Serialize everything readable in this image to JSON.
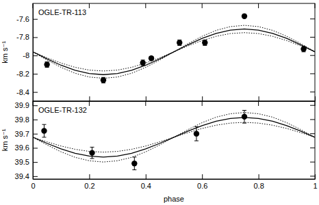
{
  "chart_data": [
    {
      "type": "scatter",
      "annotation": "OGLE-TR-113",
      "ylabel": "km s⁻¹",
      "xlim": [
        0,
        1
      ],
      "xticks": [
        0,
        0.2,
        0.4,
        0.6,
        0.8,
        1
      ],
      "ylim": [
        -8.5,
        -7.43
      ],
      "yticks": [
        -8.4,
        -8.2,
        -8,
        -7.8,
        -7.6
      ],
      "tick_labels": "y",
      "series": [
        {
          "type": "scatter",
          "marker": "circle",
          "color": "#000000",
          "x": [
            0.05,
            0.25,
            0.39,
            0.42,
            0.52,
            0.61,
            0.75,
            0.96
          ],
          "values": [
            -8.1,
            -8.27,
            -8.08,
            -8.03,
            -7.86,
            -7.86,
            -7.57,
            -7.93
          ],
          "errors": [
            0.03,
            0.03,
            0.03,
            0.02,
            0.03,
            0.03,
            0.02,
            0.03
          ]
        },
        {
          "type": "line",
          "line_style": "solid",
          "color": "#000000",
          "x": [
            0,
            0.05,
            0.1,
            0.15,
            0.2,
            0.25,
            0.3,
            0.35,
            0.4,
            0.45,
            0.5,
            0.55,
            0.6,
            0.65,
            0.7,
            0.75,
            0.8,
            0.85,
            0.9,
            0.95,
            1
          ],
          "values": [
            -7.96,
            -8.037,
            -8.107,
            -8.162,
            -8.198,
            -8.21,
            -8.198,
            -8.162,
            -8.107,
            -8.037,
            -7.96,
            -7.883,
            -7.813,
            -7.758,
            -7.722,
            -7.71,
            -7.722,
            -7.758,
            -7.813,
            -7.883,
            -7.96
          ]
        },
        {
          "type": "line",
          "line_style": "dotted",
          "color": "#000000",
          "x": [
            0,
            0.05,
            0.1,
            0.15,
            0.2,
            0.25,
            0.3,
            0.35,
            0.4,
            0.45,
            0.5,
            0.55,
            0.6,
            0.65,
            0.7,
            0.75,
            0.8,
            0.85,
            0.9,
            0.95,
            1
          ],
          "values": [
            -7.96,
            -8.05,
            -8.13,
            -8.195,
            -8.236,
            -8.25,
            -8.236,
            -8.195,
            -8.13,
            -8.05,
            -7.96,
            -7.87,
            -7.79,
            -7.725,
            -7.684,
            -7.67,
            -7.684,
            -7.725,
            -7.79,
            -7.87,
            -7.96
          ]
        },
        {
          "type": "line",
          "line_style": "dotted",
          "color": "#000000",
          "x": [
            0,
            0.05,
            0.1,
            0.15,
            0.2,
            0.25,
            0.3,
            0.35,
            0.4,
            0.45,
            0.5,
            0.55,
            0.6,
            0.65,
            0.7,
            0.75,
            0.8,
            0.85,
            0.9,
            0.95,
            1
          ],
          "values": [
            -7.96,
            -8.025,
            -8.083,
            -8.13,
            -8.16,
            -8.17,
            -8.16,
            -8.13,
            -8.083,
            -8.025,
            -7.96,
            -7.895,
            -7.837,
            -7.79,
            -7.76,
            -7.75,
            -7.76,
            -7.79,
            -7.837,
            -7.895,
            -7.96
          ]
        }
      ]
    },
    {
      "type": "scatter",
      "annotation": "OGLE-TR-132",
      "ylabel": "km s⁻¹",
      "xlabel": "phase",
      "xlim": [
        0,
        1
      ],
      "xticks": [
        0,
        0.2,
        0.4,
        0.6,
        0.8,
        1
      ],
      "ylim": [
        39.38,
        39.93
      ],
      "yticks": [
        39.4,
        39.5,
        39.6,
        39.7,
        39.8,
        39.9
      ],
      "series": [
        {
          "type": "scatter",
          "marker": "circle",
          "color": "#000000",
          "x": [
            0.04,
            0.21,
            0.36,
            0.58,
            0.75
          ],
          "values": [
            39.72,
            39.565,
            39.49,
            39.7,
            39.82
          ],
          "errors": [
            0.045,
            0.04,
            0.045,
            0.05,
            0.045
          ]
        },
        {
          "type": "line",
          "line_style": "solid",
          "color": "#000000",
          "x": [
            0,
            0.05,
            0.1,
            0.15,
            0.2,
            0.25,
            0.3,
            0.35,
            0.4,
            0.45,
            0.5,
            0.55,
            0.6,
            0.65,
            0.7,
            0.75,
            0.8,
            0.85,
            0.9,
            0.95,
            1
          ],
          "values": [
            39.675,
            39.632,
            39.593,
            39.562,
            39.542,
            39.535,
            39.542,
            39.562,
            39.593,
            39.632,
            39.675,
            39.718,
            39.757,
            39.788,
            39.808,
            39.815,
            39.808,
            39.788,
            39.757,
            39.718,
            39.675
          ]
        },
        {
          "type": "line",
          "line_style": "dotted",
          "color": "#000000",
          "x": [
            0,
            0.05,
            0.1,
            0.15,
            0.2,
            0.25,
            0.3,
            0.35,
            0.4,
            0.45,
            0.5,
            0.55,
            0.6,
            0.65,
            0.7,
            0.75,
            0.8,
            0.85,
            0.9,
            0.95,
            1
          ],
          "values": [
            39.675,
            39.621,
            39.572,
            39.533,
            39.509,
            39.5,
            39.509,
            39.533,
            39.572,
            39.621,
            39.675,
            39.729,
            39.778,
            39.817,
            39.841,
            39.85,
            39.841,
            39.817,
            39.778,
            39.729,
            39.675
          ]
        },
        {
          "type": "line",
          "line_style": "dotted",
          "color": "#000000",
          "x": [
            0,
            0.05,
            0.1,
            0.15,
            0.2,
            0.25,
            0.3,
            0.35,
            0.4,
            0.45,
            0.5,
            0.55,
            0.6,
            0.65,
            0.7,
            0.75,
            0.8,
            0.85,
            0.9,
            0.95,
            1
          ],
          "values": [
            39.675,
            39.643,
            39.613,
            39.59,
            39.575,
            39.57,
            39.575,
            39.59,
            39.613,
            39.643,
            39.675,
            39.707,
            39.737,
            39.76,
            39.775,
            39.78,
            39.775,
            39.76,
            39.737,
            39.707,
            39.675
          ]
        }
      ]
    }
  ]
}
